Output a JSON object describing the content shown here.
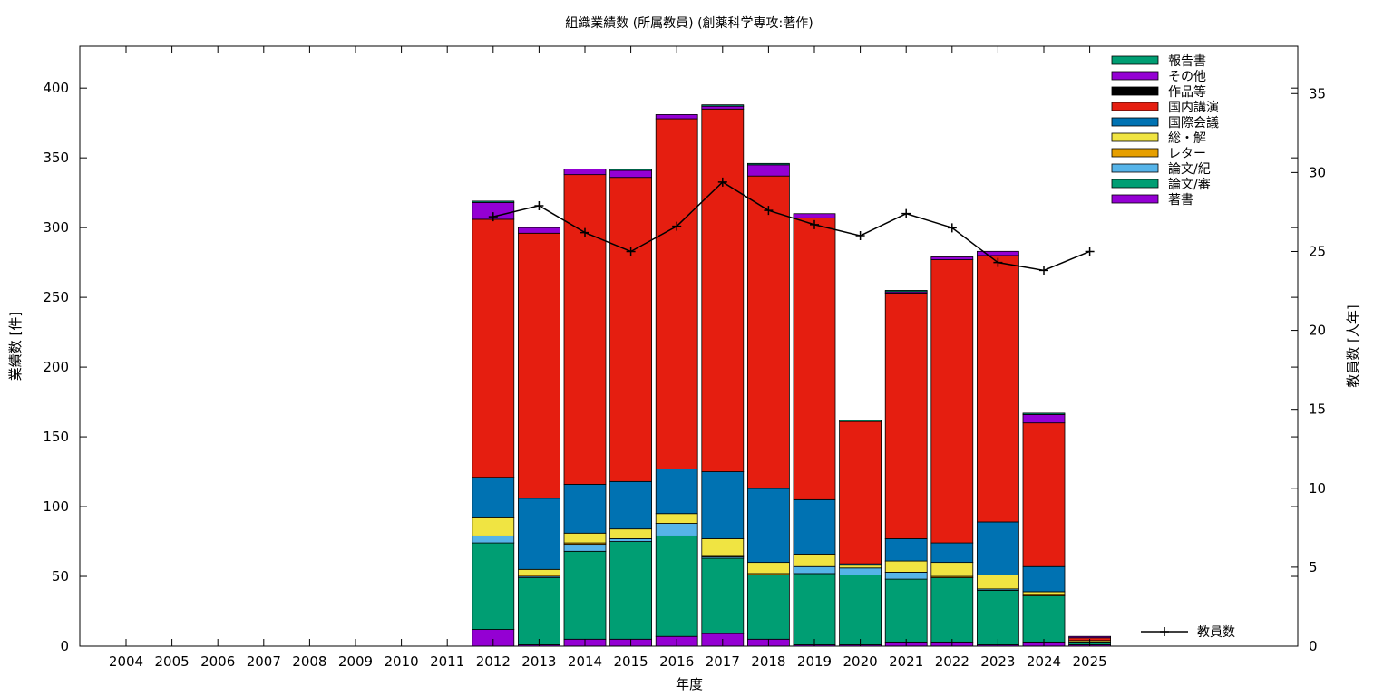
{
  "chart_data": {
    "type": "bar",
    "stacked": true,
    "title": "組織業績数 (所属教員) (創薬科学専攻:著作)",
    "xlabel": "年度",
    "ylabel": "業績数 [件]",
    "y2label": "教員数 [人年]",
    "ylim": [
      0,
      430
    ],
    "y2lim": [
      0,
      38
    ],
    "yticks": [
      0,
      50,
      100,
      150,
      200,
      250,
      300,
      350,
      400
    ],
    "y2ticks": [
      0,
      5,
      10,
      15,
      20,
      25,
      30,
      35
    ],
    "grid": false,
    "legend_position": "top-right",
    "categories": [
      "2004",
      "2005",
      "2006",
      "2007",
      "2008",
      "2009",
      "2010",
      "2011",
      "2012",
      "2013",
      "2014",
      "2015",
      "2016",
      "2017",
      "2018",
      "2019",
      "2020",
      "2021",
      "2022",
      "2023",
      "2024",
      "2025"
    ],
    "series": [
      {
        "name": "著書",
        "color": "#9400d3",
        "values": [
          0,
          0,
          0,
          0,
          0,
          0,
          0,
          0,
          12,
          1,
          5,
          5,
          7,
          9,
          5,
          1,
          1,
          3,
          3,
          1,
          3,
          1
        ]
      },
      {
        "name": "論文/審",
        "color": "#009e73",
        "values": [
          0,
          0,
          0,
          0,
          0,
          0,
          0,
          0,
          62,
          48,
          63,
          70,
          72,
          54,
          46,
          51,
          50,
          45,
          46,
          39,
          33,
          2
        ]
      },
      {
        "name": "論文/紀",
        "color": "#56b4e9",
        "values": [
          0,
          0,
          0,
          0,
          0,
          0,
          0,
          0,
          5,
          1,
          5,
          2,
          9,
          1,
          0,
          5,
          5,
          5,
          0,
          1,
          0,
          0
        ]
      },
      {
        "name": "レター",
        "color": "#e69f00",
        "values": [
          0,
          0,
          0,
          0,
          0,
          0,
          0,
          0,
          0,
          1,
          1,
          0,
          0,
          1,
          1,
          0,
          0,
          0,
          1,
          0,
          1,
          0
        ]
      },
      {
        "name": "総・解",
        "color": "#f0e442",
        "values": [
          0,
          0,
          0,
          0,
          0,
          0,
          0,
          0,
          13,
          4,
          7,
          7,
          7,
          12,
          8,
          9,
          2,
          8,
          10,
          10,
          2,
          1
        ]
      },
      {
        "name": "国際会議",
        "color": "#0072b2",
        "values": [
          0,
          0,
          0,
          0,
          0,
          0,
          0,
          0,
          29,
          51,
          35,
          34,
          32,
          48,
          53,
          39,
          1,
          16,
          14,
          38,
          18,
          0
        ]
      },
      {
        "name": "国内講演",
        "color": "#e51e10",
        "values": [
          0,
          0,
          0,
          0,
          0,
          0,
          0,
          0,
          185,
          190,
          222,
          218,
          251,
          260,
          224,
          202,
          102,
          176,
          203,
          191,
          103,
          2
        ]
      },
      {
        "name": "作品等",
        "color": "#000000",
        "values": [
          0,
          0,
          0,
          0,
          0,
          0,
          0,
          0,
          0,
          0,
          0,
          0,
          0,
          0,
          0,
          0,
          0,
          0,
          0,
          0,
          0,
          0
        ]
      },
      {
        "name": "その他",
        "color": "#9400d3",
        "values": [
          0,
          0,
          0,
          0,
          0,
          0,
          0,
          0,
          12,
          4,
          4,
          5,
          3,
          2,
          8,
          3,
          0,
          1,
          2,
          3,
          6,
          1
        ]
      },
      {
        "name": "報告書",
        "color": "#009e73",
        "values": [
          0,
          0,
          0,
          0,
          0,
          0,
          0,
          0,
          1,
          0,
          0,
          1,
          0,
          1,
          1,
          0,
          1,
          1,
          0,
          0,
          1,
          0
        ]
      }
    ],
    "line_series": {
      "name": "教員数",
      "color": "#000000",
      "axis": "y2",
      "x": [
        "2012",
        "2013",
        "2014",
        "2015",
        "2016",
        "2017",
        "2018",
        "2019",
        "2020",
        "2021",
        "2022",
        "2023",
        "2024",
        "2025"
      ],
      "values": [
        27.2,
        27.9,
        26.2,
        25.0,
        26.6,
        29.4,
        27.6,
        26.7,
        26.0,
        27.4,
        26.5,
        24.3,
        23.8,
        25.0
      ]
    }
  }
}
